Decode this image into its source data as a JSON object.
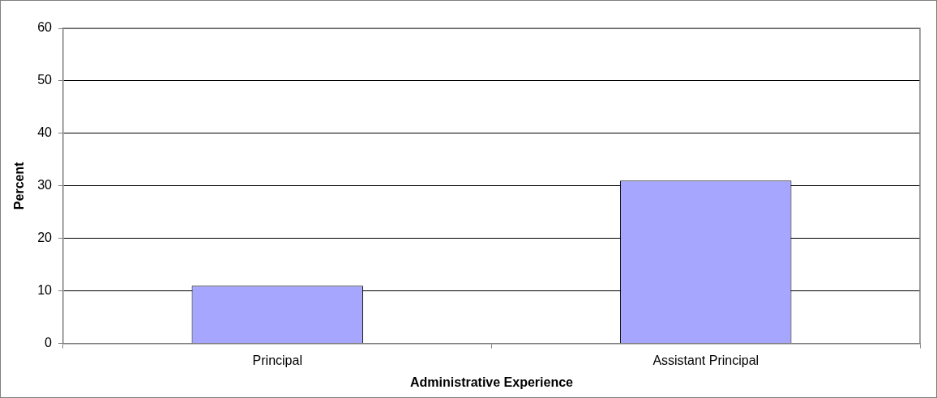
{
  "chart_data": {
    "type": "bar",
    "xlabel": "Administrative Experience",
    "ylabel": "Percent",
    "categories": [
      "Principal",
      "Assistant Principal"
    ],
    "values": [
      11,
      31
    ],
    "color": "#a6a6ff",
    "ylim": [
      0,
      60
    ],
    "yticks": [
      0,
      10,
      20,
      30,
      40,
      50,
      60
    ],
    "grid": "y"
  }
}
